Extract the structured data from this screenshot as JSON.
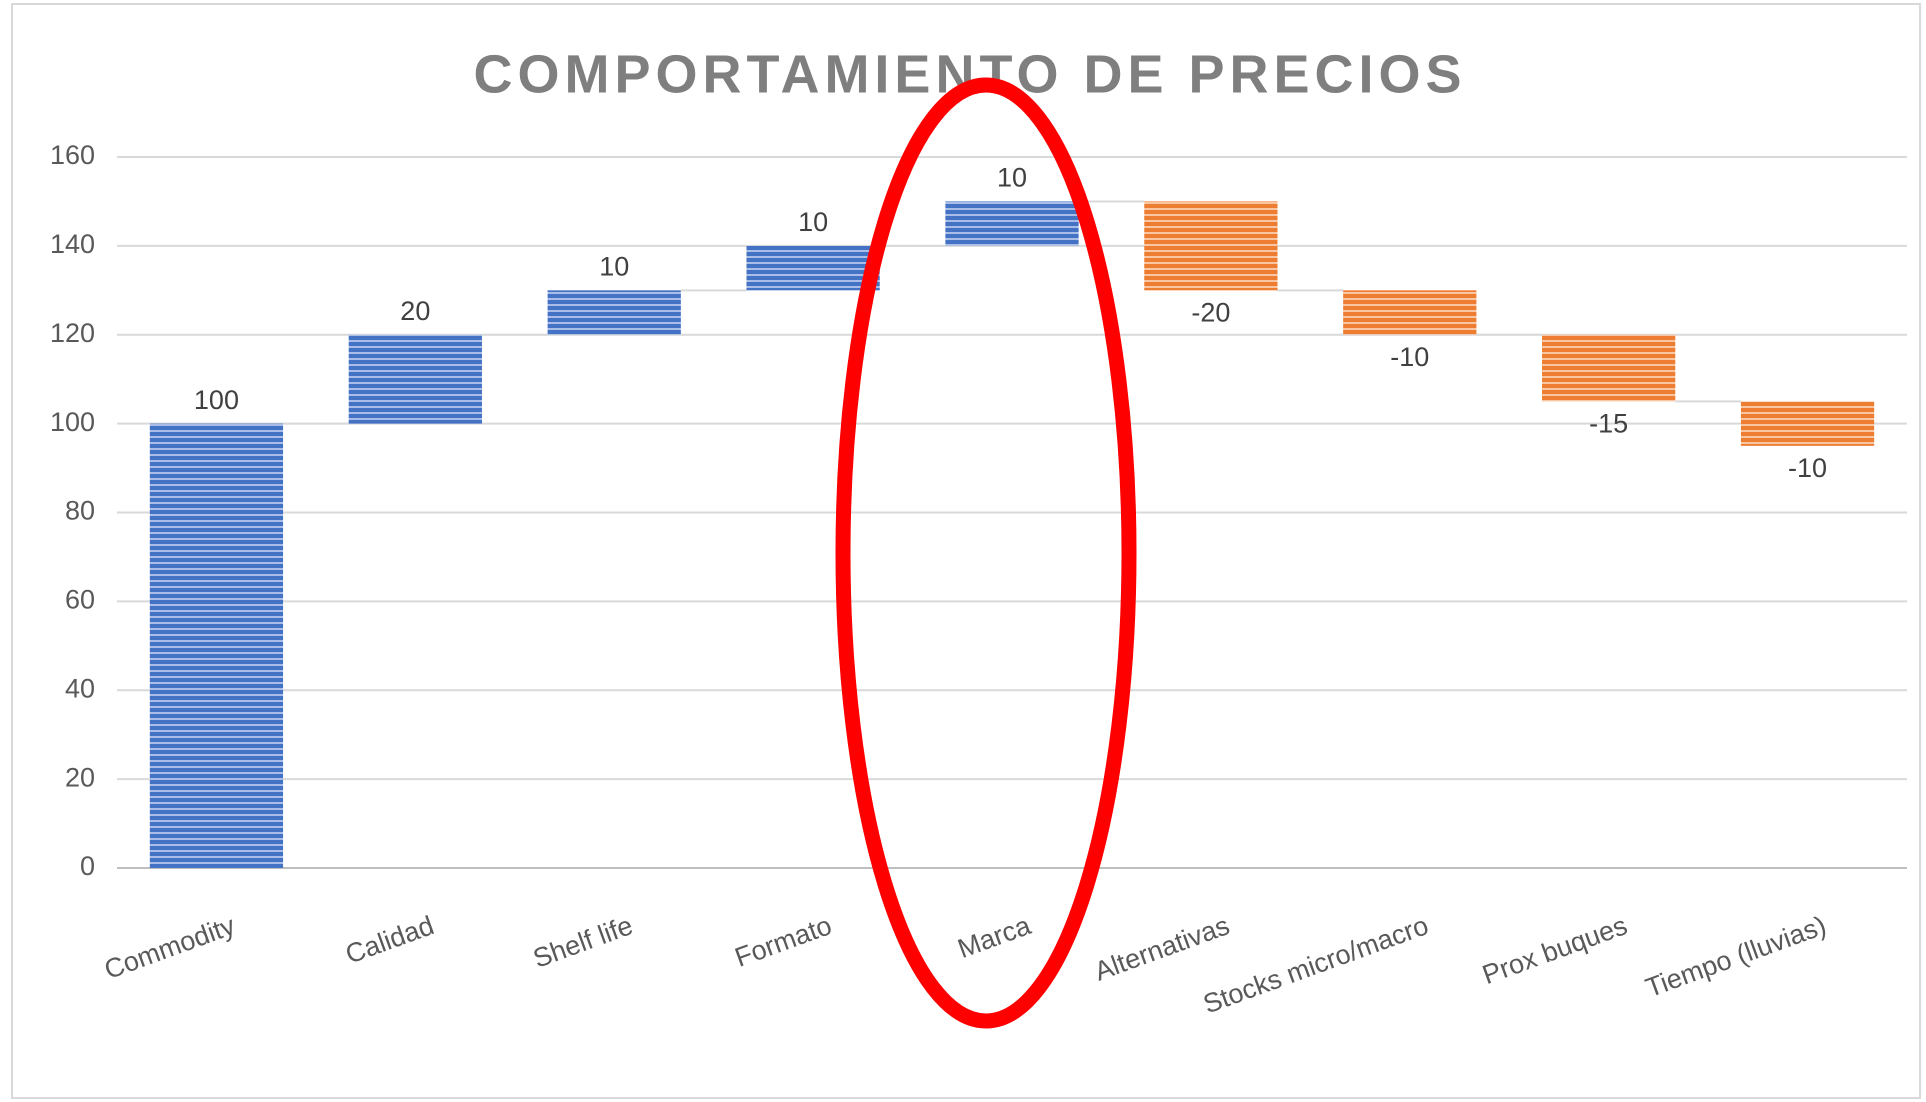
{
  "chart_data": {
    "type": "waterfall",
    "title": "COMPORTAMIENTO  DE PRECIOS",
    "categories": [
      "Commodity",
      "Calidad",
      "Shelf life",
      "Formato",
      "Marca",
      "Alternativas",
      "Stocks micro/macro",
      "Prox buques",
      "Tiempo (lluvias)"
    ],
    "values": [
      100,
      20,
      10,
      10,
      10,
      -20,
      -10,
      -15,
      -10
    ],
    "increase_color": "#4472c4",
    "decrease_color": "#ed7d31",
    "ylim": [
      0,
      160
    ],
    "yticks": [
      0,
      20,
      40,
      60,
      80,
      100,
      120,
      140,
      160
    ],
    "grid": true
  }
}
